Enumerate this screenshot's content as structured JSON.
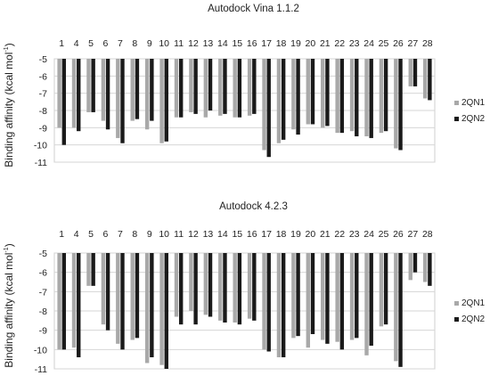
{
  "chart_data": [
    {
      "type": "bar",
      "title": "Autodock Vina 1.1.2",
      "ylabel": "Binding affinity (kcal mol",
      "ylabel_sup": "-1",
      "ylabel_close": ")",
      "ylim": [
        -11,
        -5
      ],
      "yticks": [
        "-5",
        "-6",
        "-7",
        "-8",
        "-9",
        "-10",
        "-11"
      ],
      "grid": true,
      "legend_position": "right",
      "categories": [
        "1",
        "4",
        "5",
        "6",
        "7",
        "8",
        "9",
        "10",
        "11",
        "12",
        "13",
        "14",
        "15",
        "16",
        "17",
        "18",
        "19",
        "20",
        "21",
        "22",
        "23",
        "24",
        "25",
        "26",
        "27",
        "28"
      ],
      "series": [
        {
          "name": "2QN1",
          "color": "#a9a9a9",
          "values": [
            -9.0,
            -9.0,
            -8.1,
            -8.6,
            -9.6,
            -8.6,
            -9.1,
            -9.9,
            -8.4,
            -8.1,
            -8.4,
            -8.3,
            -8.4,
            -8.3,
            -10.3,
            -9.9,
            -9.1,
            -8.8,
            -9.0,
            -9.3,
            -9.2,
            -9.5,
            -9.3,
            -10.2,
            -6.6,
            -7.3
          ]
        },
        {
          "name": "2QN2",
          "color": "#1a1a1a",
          "values": [
            -10.0,
            -9.2,
            -8.1,
            -9.1,
            -9.9,
            -8.5,
            -8.6,
            -9.8,
            -8.4,
            -8.2,
            -8.0,
            -8.2,
            -8.4,
            -8.2,
            -10.7,
            -9.7,
            -9.4,
            -8.8,
            -8.9,
            -9.3,
            -9.5,
            -9.6,
            -9.2,
            -10.3,
            -6.6,
            -7.4
          ]
        }
      ]
    },
    {
      "type": "bar",
      "title": "Autodock 4.2.3",
      "ylabel": "Binding affinity (kcal mol",
      "ylabel_sup": "-1",
      "ylabel_close": ")",
      "ylim": [
        -11,
        -5
      ],
      "yticks": [
        "-5",
        "-6",
        "-7",
        "-8",
        "-9",
        "-10",
        "-11"
      ],
      "grid": true,
      "legend_position": "right",
      "categories": [
        "1",
        "4",
        "5",
        "6",
        "7",
        "8",
        "9",
        "10",
        "11",
        "12",
        "13",
        "14",
        "15",
        "16",
        "17",
        "18",
        "19",
        "20",
        "21",
        "22",
        "23",
        "24",
        "25",
        "26",
        "27",
        "28"
      ],
      "series": [
        {
          "name": "2QN1",
          "color": "#a9a9a9",
          "values": [
            -10.0,
            -9.9,
            -6.7,
            -8.7,
            -9.7,
            -9.5,
            -10.7,
            -10.8,
            -8.3,
            -8.0,
            -8.2,
            -8.5,
            -8.6,
            -8.4,
            -10.0,
            -10.4,
            -9.4,
            -9.9,
            -9.5,
            -9.6,
            -9.5,
            -10.3,
            -8.8,
            -10.6,
            -6.4,
            -6.5
          ]
        },
        {
          "name": "2QN2",
          "color": "#1a1a1a",
          "values": [
            -10.0,
            -10.4,
            -6.7,
            -9.0,
            -10.0,
            -9.4,
            -10.4,
            -11.0,
            -8.7,
            -8.7,
            -8.3,
            -8.6,
            -8.7,
            -8.5,
            -10.1,
            -10.4,
            -9.3,
            -9.2,
            -9.7,
            -10.0,
            -9.4,
            -9.8,
            -8.7,
            -10.9,
            -6.0,
            -6.7
          ]
        }
      ]
    }
  ]
}
